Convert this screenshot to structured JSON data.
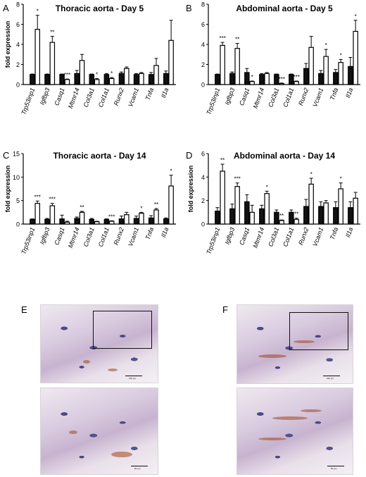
{
  "chart_data": [
    {
      "panel": "A",
      "type": "bar",
      "title": "Thoracic aorta - Day 5",
      "ylabel": "fold expression",
      "ylim": [
        0,
        8
      ],
      "yticks": [
        "0",
        "2",
        "4",
        "6",
        "8"
      ],
      "categories": [
        "Trp53inp1",
        "Igfbp3",
        "Casq1",
        "Mtmr14",
        "Col3a1",
        "Col1a1",
        "Runx2",
        "Vcam1",
        "Tnfa",
        "Il1a"
      ],
      "series": [
        {
          "fill": "#111111",
          "values": [
            1.0,
            1.0,
            1.0,
            1.1,
            1.0,
            1.0,
            1.1,
            1.0,
            1.0,
            1.1
          ],
          "errors": [
            0.05,
            0.05,
            0.05,
            0.3,
            0.05,
            0.1,
            0.15,
            0.1,
            0.2,
            0.25
          ]
        },
        {
          "fill": "#ffffff",
          "values": [
            5.5,
            4.2,
            0.5,
            2.4,
            0.5,
            0.6,
            1.6,
            1.1,
            1.9,
            4.4
          ],
          "errors": [
            1.4,
            0.6,
            0.05,
            0.6,
            0.1,
            0.1,
            0.15,
            0.1,
            0.7,
            2.0
          ]
        }
      ],
      "significance": [
        "*",
        "**",
        "***",
        "",
        "*",
        "*",
        "",
        "",
        "",
        ""
      ]
    },
    {
      "panel": "B",
      "type": "bar",
      "title": "Abdominal aorta - Day 5",
      "ylabel": "",
      "ylim": [
        0,
        8
      ],
      "yticks": [
        "0",
        "2",
        "4",
        "6",
        "8"
      ],
      "categories": [
        "Trp53inp1",
        "Igfbp3",
        "Casq1",
        "Mtmr14",
        "Col3a1",
        "Col1a1",
        "Runx2",
        "Vcam1",
        "Tnfa",
        "Il1a"
      ],
      "series": [
        {
          "fill": "#111111",
          "values": [
            1.0,
            1.1,
            1.2,
            1.0,
            1.0,
            1.0,
            1.6,
            1.1,
            1.2,
            1.8
          ],
          "errors": [
            0.05,
            0.15,
            0.4,
            0.1,
            0.05,
            0.05,
            0.5,
            0.3,
            0.3,
            0.9
          ]
        },
        {
          "fill": "#ffffff",
          "values": [
            3.9,
            3.6,
            0.3,
            1.1,
            0.1,
            0.3,
            3.7,
            2.8,
            2.2,
            5.3
          ],
          "errors": [
            0.3,
            0.5,
            0.05,
            0.1,
            0.05,
            0.05,
            1.1,
            0.7,
            0.3,
            1.1
          ]
        }
      ],
      "significance": [
        "***",
        "**",
        "*",
        "",
        "***",
        "***",
        "",
        "*",
        "*",
        "*"
      ]
    },
    {
      "panel": "C",
      "type": "bar",
      "title": "Thoracic aorta - Day 14",
      "ylabel": "fold expression",
      "ylim": [
        0,
        15
      ],
      "yticks": [
        "0",
        "5",
        "10",
        "15"
      ],
      "categories": [
        "Trp53inp1",
        "Igfbp3",
        "Casq1",
        "Mtmr14",
        "Col3a1",
        "Col1a1",
        "Runx2",
        "Vcam1",
        "Tnfa",
        "Il1a"
      ],
      "series": [
        {
          "fill": "#111111",
          "values": [
            1.0,
            1.0,
            1.1,
            1.2,
            1.0,
            1.0,
            1.1,
            1.2,
            1.3,
            1.1
          ],
          "errors": [
            0.1,
            0.2,
            0.8,
            0.3,
            0.2,
            0.1,
            0.6,
            0.5,
            0.5,
            0.2
          ]
        },
        {
          "fill": "#ffffff",
          "values": [
            4.4,
            3.9,
            0.4,
            2.5,
            0.5,
            0.6,
            2.0,
            2.3,
            3.0,
            8.1
          ],
          "errors": [
            0.5,
            0.5,
            0.2,
            0.2,
            0.1,
            0.1,
            0.5,
            0.2,
            0.3,
            2.3
          ]
        }
      ],
      "significance": [
        "***",
        "***",
        "",
        "**",
        "",
        "***",
        "",
        "*",
        "**",
        "*"
      ]
    },
    {
      "panel": "D",
      "type": "bar",
      "title": "Abdominal aorta - Day 14",
      "ylabel": "fold expression",
      "ylim": [
        0,
        6
      ],
      "yticks": [
        "0",
        "2",
        "4",
        "6"
      ],
      "categories": [
        "Trp53inp1",
        "Igfbp3",
        "Casq1",
        "Mtmr14",
        "Col3a1",
        "Col1a1",
        "Runx2",
        "Vcam1",
        "Tnfa",
        "Il1a"
      ],
      "series": [
        {
          "fill": "#111111",
          "values": [
            1.1,
            1.3,
            1.9,
            1.3,
            1.0,
            1.0,
            1.5,
            1.5,
            1.4,
            1.4
          ],
          "errors": [
            0.3,
            0.4,
            0.6,
            0.3,
            0.2,
            0.2,
            0.6,
            0.4,
            0.5,
            0.5
          ]
        },
        {
          "fill": "#ffffff",
          "values": [
            4.5,
            3.2,
            1.0,
            2.6,
            0.3,
            0.4,
            3.4,
            1.8,
            3.0,
            2.2
          ],
          "errors": [
            0.6,
            0.3,
            0.6,
            0.2,
            0.05,
            0.1,
            0.5,
            0.2,
            0.5,
            0.5
          ]
        }
      ],
      "significance": [
        "**",
        "***",
        "",
        "*",
        "**",
        "**",
        "*",
        "",
        "*",
        ""
      ]
    }
  ],
  "images": {
    "E": {
      "label": "E",
      "scale_top": "100 µm",
      "scale_bottom": "50 µm"
    },
    "F": {
      "label": "F",
      "scale_top": "100 µm",
      "scale_bottom": "50 µm"
    }
  }
}
